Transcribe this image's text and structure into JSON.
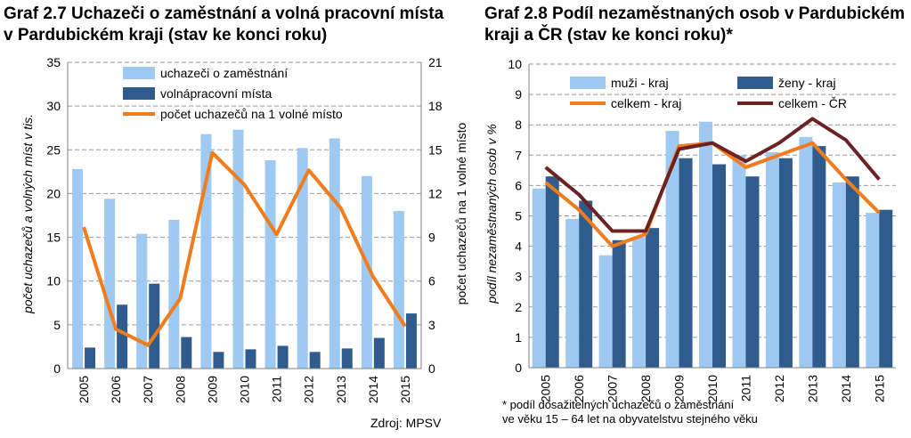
{
  "chart_data": [
    {
      "type": "bar",
      "title": "Graf 2.7 Uchazeči o zaměstnání a volná pracovní místa v Pardubickém kraji (stav ke konci roku)",
      "categories": [
        "2005",
        "2006",
        "2007",
        "2008",
        "2009",
        "2010",
        "2011",
        "2012",
        "2013",
        "2014",
        "2015"
      ],
      "ylabel": "počet uchazečů a volných míst v tis.",
      "y2label": "počet uchazečů na 1 volné místo",
      "ylim": [
        0,
        35
      ],
      "y2lim": [
        0,
        21
      ],
      "yticks": [
        "0",
        "5",
        "10",
        "15",
        "20",
        "25",
        "30",
        "35"
      ],
      "y2ticks": [
        "0",
        "3",
        "6",
        "9",
        "12",
        "15",
        "18",
        "21"
      ],
      "grid": true,
      "legend_position": "top",
      "series": [
        {
          "name": "uchazeči o zaměstnání",
          "kind": "bar",
          "axis": "left",
          "color": "#9dc9f2",
          "values": [
            22.8,
            19.4,
            15.4,
            17.0,
            26.8,
            27.3,
            23.8,
            25.2,
            26.3,
            22.0,
            18.0
          ]
        },
        {
          "name": "volnápracovní místa",
          "kind": "bar",
          "axis": "left",
          "color": "#2f5c8d",
          "values": [
            2.4,
            7.3,
            9.7,
            3.6,
            1.9,
            2.2,
            2.6,
            1.9,
            2.3,
            3.5,
            6.3
          ]
        },
        {
          "name": "počet uchazečů na 1 volné místo",
          "kind": "line",
          "axis": "right",
          "color": "#f07c1e",
          "values": [
            9.7,
            2.7,
            1.6,
            4.8,
            14.8,
            12.6,
            9.2,
            13.6,
            11.0,
            6.3,
            2.9
          ]
        }
      ],
      "ylabel_color": "#3c9be0",
      "y2label_color": "#f07c1e"
    },
    {
      "type": "bar",
      "title": "Graf 2.8 Podíl nezaměstnaných osob v Pardubickém kraji a ČR (stav ke konci roku)*",
      "categories": [
        "2005",
        "2006",
        "2007",
        "2008",
        "2009",
        "2010",
        "2011",
        "2012",
        "2013",
        "2014",
        "2015"
      ],
      "ylabel": "podíl nezaměstnaných osob v %",
      "ylim": [
        0,
        10
      ],
      "yticks": [
        "0",
        "1",
        "2",
        "3",
        "4",
        "5",
        "6",
        "7",
        "8",
        "9",
        "10"
      ],
      "grid": true,
      "legend_position": "top",
      "series": [
        {
          "name": "muži - kraj",
          "kind": "bar",
          "color": "#9dc9f2",
          "values": [
            5.9,
            4.9,
            3.7,
            4.3,
            7.8,
            8.1,
            7.0,
            7.1,
            7.6,
            6.1,
            5.1
          ]
        },
        {
          "name": "ženy - kraj",
          "kind": "bar",
          "color": "#2f5c8d",
          "values": [
            6.3,
            5.5,
            4.2,
            4.6,
            6.9,
            6.7,
            6.3,
            6.9,
            7.3,
            6.3,
            5.2
          ]
        },
        {
          "name": "celkem - kraj",
          "kind": "line",
          "color": "#f07c1e",
          "values": [
            6.1,
            5.2,
            4.0,
            4.4,
            7.3,
            7.4,
            6.6,
            7.0,
            7.4,
            6.2,
            5.1
          ]
        },
        {
          "name": "celkem - ČR",
          "kind": "line",
          "color": "#6b2222",
          "values": [
            6.6,
            5.7,
            4.5,
            4.5,
            7.2,
            7.4,
            6.8,
            7.4,
            8.2,
            7.5,
            6.2
          ]
        }
      ],
      "ylabel_color": "#000000"
    }
  ],
  "page": {
    "title1": "Graf 2.7 Uchazeči o zaměstnání a volná pracovní místa v Pardubickém kraji (stav ke konci roku)",
    "title2": "Graf 2.8 Podíl nezaměstnaných osob v Pardubickém kraji a ČR (stav ke konci roku)*",
    "source": "Zdroj: MPSV",
    "note1": "* podíl dosažitelných uchazečů o zaměstnání",
    "note2": "ve věku 15 – 64 let na obyvatelstvu stejného věku"
  }
}
